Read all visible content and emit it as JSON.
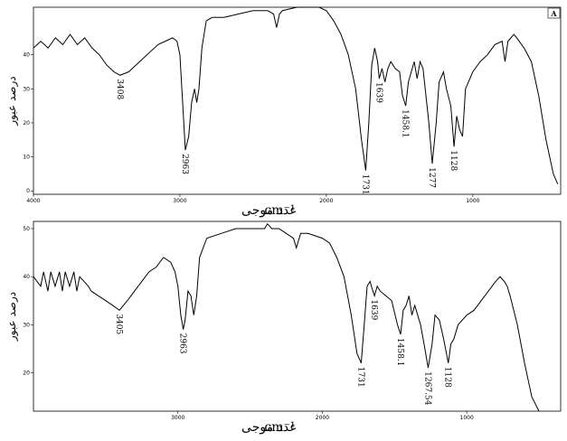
{
  "chart_data": [
    {
      "type": "line",
      "panel_label": "A",
      "y_label": "درصد عبور",
      "x_label": "عدد موجی",
      "x_label_unit": "cm⁻¹",
      "xlim": [
        4000,
        400
      ],
      "xticks": [
        4000,
        3000,
        2000,
        1000
      ],
      "ylim": [
        -1,
        54
      ],
      "yticks": [
        0,
        10,
        20,
        30,
        40
      ],
      "peak_labels": [
        3408,
        2963,
        1731,
        1639,
        1458.1,
        1277,
        1128
      ],
      "series": [
        {
          "color": "#000000",
          "x": [
            4000,
            3950,
            3900,
            3850,
            3800,
            3750,
            3700,
            3650,
            3600,
            3550,
            3500,
            3450,
            3408,
            3350,
            3300,
            3250,
            3200,
            3150,
            3100,
            3050,
            3020,
            3000,
            2980,
            2963,
            2940,
            2920,
            2900,
            2885,
            2870,
            2850,
            2820,
            2780,
            2700,
            2600,
            2500,
            2400,
            2360,
            2340,
            2320,
            2300,
            2200,
            2100,
            2050,
            2000,
            1950,
            1900,
            1850,
            1800,
            1760,
            1731,
            1710,
            1690,
            1670,
            1650,
            1639,
            1620,
            1600,
            1580,
            1560,
            1530,
            1500,
            1480,
            1458.1,
            1440,
            1420,
            1400,
            1380,
            1360,
            1340,
            1300,
            1277,
            1250,
            1230,
            1200,
            1180,
            1150,
            1128,
            1110,
            1090,
            1070,
            1050,
            1000,
            950,
            900,
            850,
            800,
            780,
            760,
            740,
            720,
            700,
            650,
            600,
            550,
            500,
            450,
            420
          ],
          "values": [
            42,
            44,
            42,
            45,
            43,
            46,
            43,
            45,
            42,
            40,
            37,
            35,
            34,
            35,
            37,
            39,
            41,
            43,
            44,
            45,
            44,
            40,
            25,
            12,
            16,
            26,
            30,
            26,
            30,
            42,
            50,
            51,
            51,
            52,
            53,
            53,
            52,
            48,
            52,
            53,
            54,
            54,
            54,
            53,
            50,
            46,
            40,
            30,
            15,
            6,
            20,
            37,
            42,
            38,
            33,
            36,
            32,
            36,
            38,
            36,
            35,
            28,
            25,
            32,
            35,
            38,
            33,
            38,
            36,
            20,
            8,
            20,
            32,
            35,
            30,
            25,
            13,
            22,
            18,
            16,
            30,
            35,
            38,
            40,
            43,
            44,
            38,
            44,
            45,
            46,
            45,
            42,
            38,
            28,
            15,
            5,
            2
          ]
        }
      ]
    },
    {
      "type": "line",
      "y_label": "درصد عبور",
      "x_label": "عدد موجی",
      "x_label_unit": "cm⁻¹",
      "xlim": [
        4000,
        350
      ],
      "xticks": [
        3000,
        2000,
        1000
      ],
      "ylim": [
        12,
        51.5
      ],
      "yticks": [
        20,
        30,
        40,
        50
      ],
      "peak_labels": [
        3405,
        2963,
        1731,
        1639,
        1458.1,
        1267.54,
        1128
      ],
      "series": [
        {
          "color": "#000000",
          "x": [
            4000,
            3950,
            3930,
            3900,
            3880,
            3850,
            3820,
            3800,
            3780,
            3750,
            3720,
            3700,
            3680,
            3650,
            3620,
            3600,
            3550,
            3500,
            3450,
            3405,
            3350,
            3300,
            3250,
            3200,
            3150,
            3100,
            3050,
            3020,
            3000,
            2980,
            2963,
            2950,
            2930,
            2910,
            2890,
            2870,
            2850,
            2800,
            2700,
            2600,
            2500,
            2400,
            2380,
            2350,
            2300,
            2250,
            2200,
            2180,
            2150,
            2100,
            2000,
            1950,
            1900,
            1850,
            1800,
            1760,
            1731,
            1710,
            1690,
            1670,
            1650,
            1639,
            1620,
            1600,
            1560,
            1520,
            1480,
            1458.1,
            1440,
            1420,
            1400,
            1380,
            1360,
            1320,
            1290,
            1267.54,
            1240,
            1220,
            1190,
            1160,
            1128,
            1110,
            1090,
            1060,
            1000,
            950,
            900,
            850,
            800,
            770,
            740,
            720,
            700,
            650,
            600,
            550,
            500
          ],
          "values": [
            40,
            38,
            41,
            37,
            41,
            38,
            41,
            37,
            41,
            38,
            41,
            37,
            40,
            39,
            38,
            37,
            36,
            35,
            34,
            33,
            35,
            37,
            39,
            41,
            42,
            44,
            43,
            41,
            38,
            32,
            29,
            31,
            37,
            36,
            32,
            36,
            44,
            48,
            49,
            50,
            50,
            50,
            51,
            50,
            50,
            49,
            48,
            46,
            49,
            49,
            48,
            47,
            44,
            40,
            32,
            24,
            22,
            30,
            38,
            39,
            37,
            36,
            38,
            37,
            36,
            35,
            30,
            28,
            33,
            34,
            36,
            32,
            34,
            30,
            25,
            21,
            26,
            32,
            31,
            27,
            22,
            26,
            27,
            30,
            32,
            33,
            35,
            37,
            39,
            40,
            39,
            38,
            36,
            30,
            22,
            15,
            12
          ]
        }
      ]
    }
  ]
}
